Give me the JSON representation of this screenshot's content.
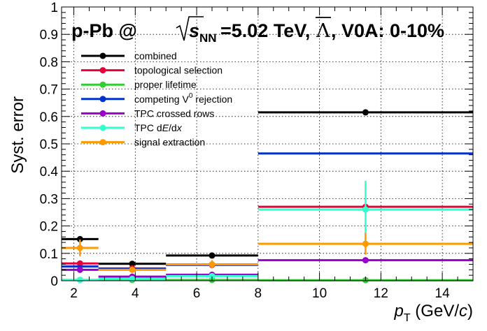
{
  "chart_data": {
    "type": "line",
    "title": {
      "part1": "p-Pb @ ",
      "sqrt_s": "s",
      "sqrt_sub": "NN",
      "part2": "=5.02 TeV, ",
      "particle": "Λ",
      "part3": ", V0A: 0-10%"
    },
    "ylabel": "Syst. error",
    "xlabel": {
      "p": "p",
      "sub": "T",
      "unit_open": " (GeV/",
      "unit_c": "c",
      "unit_close": ")"
    },
    "xlim": [
      1.6,
      15
    ],
    "ylim": [
      0,
      1
    ],
    "xticks_labeled": [
      2,
      4,
      6,
      8,
      10,
      12,
      14
    ],
    "yticks_labeled": [
      0,
      0.1,
      0.2,
      0.3,
      0.4,
      0.5,
      0.6,
      0.7,
      0.8,
      0.9,
      1
    ],
    "ytick_labels": [
      "0",
      "0.1",
      "0.2",
      "0.3",
      "0.4",
      "0.5",
      "0.6",
      "0.7",
      "0.8",
      "0.9",
      "1"
    ],
    "grid": true,
    "legend_position": "top-left",
    "bins": [
      [
        1.6,
        2.8
      ],
      [
        2.8,
        5.0
      ],
      [
        5.0,
        8.0
      ],
      [
        8.0,
        15.0
      ]
    ],
    "bin_centers": [
      2.2,
      3.9,
      6.5,
      11.5
    ],
    "series": [
      {
        "name": "combined",
        "color": "#000000",
        "values": [
          0.152,
          0.062,
          0.092,
          0.615
        ],
        "markers": [
          0.152,
          0.062,
          0.092,
          0.615
        ],
        "yerr": [
          0,
          0,
          0,
          0
        ]
      },
      {
        "name": "topological selection",
        "color": "#e8003a",
        "values": [
          0.063,
          0.045,
          0.058,
          0.27
        ],
        "markers": [
          0.063,
          0.045,
          0.058,
          0.27
        ],
        "yerr": [
          0,
          0,
          0,
          0
        ]
      },
      {
        "name": "proper lifetime",
        "color": "#33cc33",
        "values": [
          0.003,
          0.003,
          0.003,
          0.002
        ],
        "markers": [
          0.003,
          0.003,
          0.003,
          0.002
        ],
        "yerr": [
          0,
          0,
          0,
          0
        ]
      },
      {
        "name_main": "competing V",
        "name_sup": "0",
        "name_rest": " rejection",
        "color": "#0033cc",
        "values": [
          0.052,
          0.043,
          0.058,
          0.465
        ],
        "markers": [
          null,
          null,
          null,
          null
        ],
        "yerr": [
          0,
          0,
          0,
          0
        ]
      },
      {
        "name": "TPC crossed rows",
        "color": "#9900cc",
        "values": [
          0.04,
          0.015,
          0.022,
          0.075
        ],
        "markers": [
          0.04,
          0.015,
          0.022,
          0.075
        ],
        "yerr": [
          0,
          0,
          0,
          0
        ]
      },
      {
        "name_main": "TPC d",
        "name_E": "E",
        "name_slash": "/d",
        "name_x": "x",
        "color": "#33ffcc",
        "values": [
          0.003,
          0.007,
          0.017,
          0.26
        ],
        "markers": [
          0.003,
          0.007,
          0.017,
          0.26
        ],
        "yerr": [
          0,
          0,
          0,
          0.105
        ]
      },
      {
        "name": "signal extraction",
        "color": "#ff9900",
        "values": [
          0.12,
          0.04,
          0.06,
          0.135
        ],
        "markers": [
          0.12,
          0.04,
          0.06,
          0.135
        ],
        "yerr": [
          0.03,
          0.01,
          0.015,
          0.04
        ]
      }
    ]
  }
}
